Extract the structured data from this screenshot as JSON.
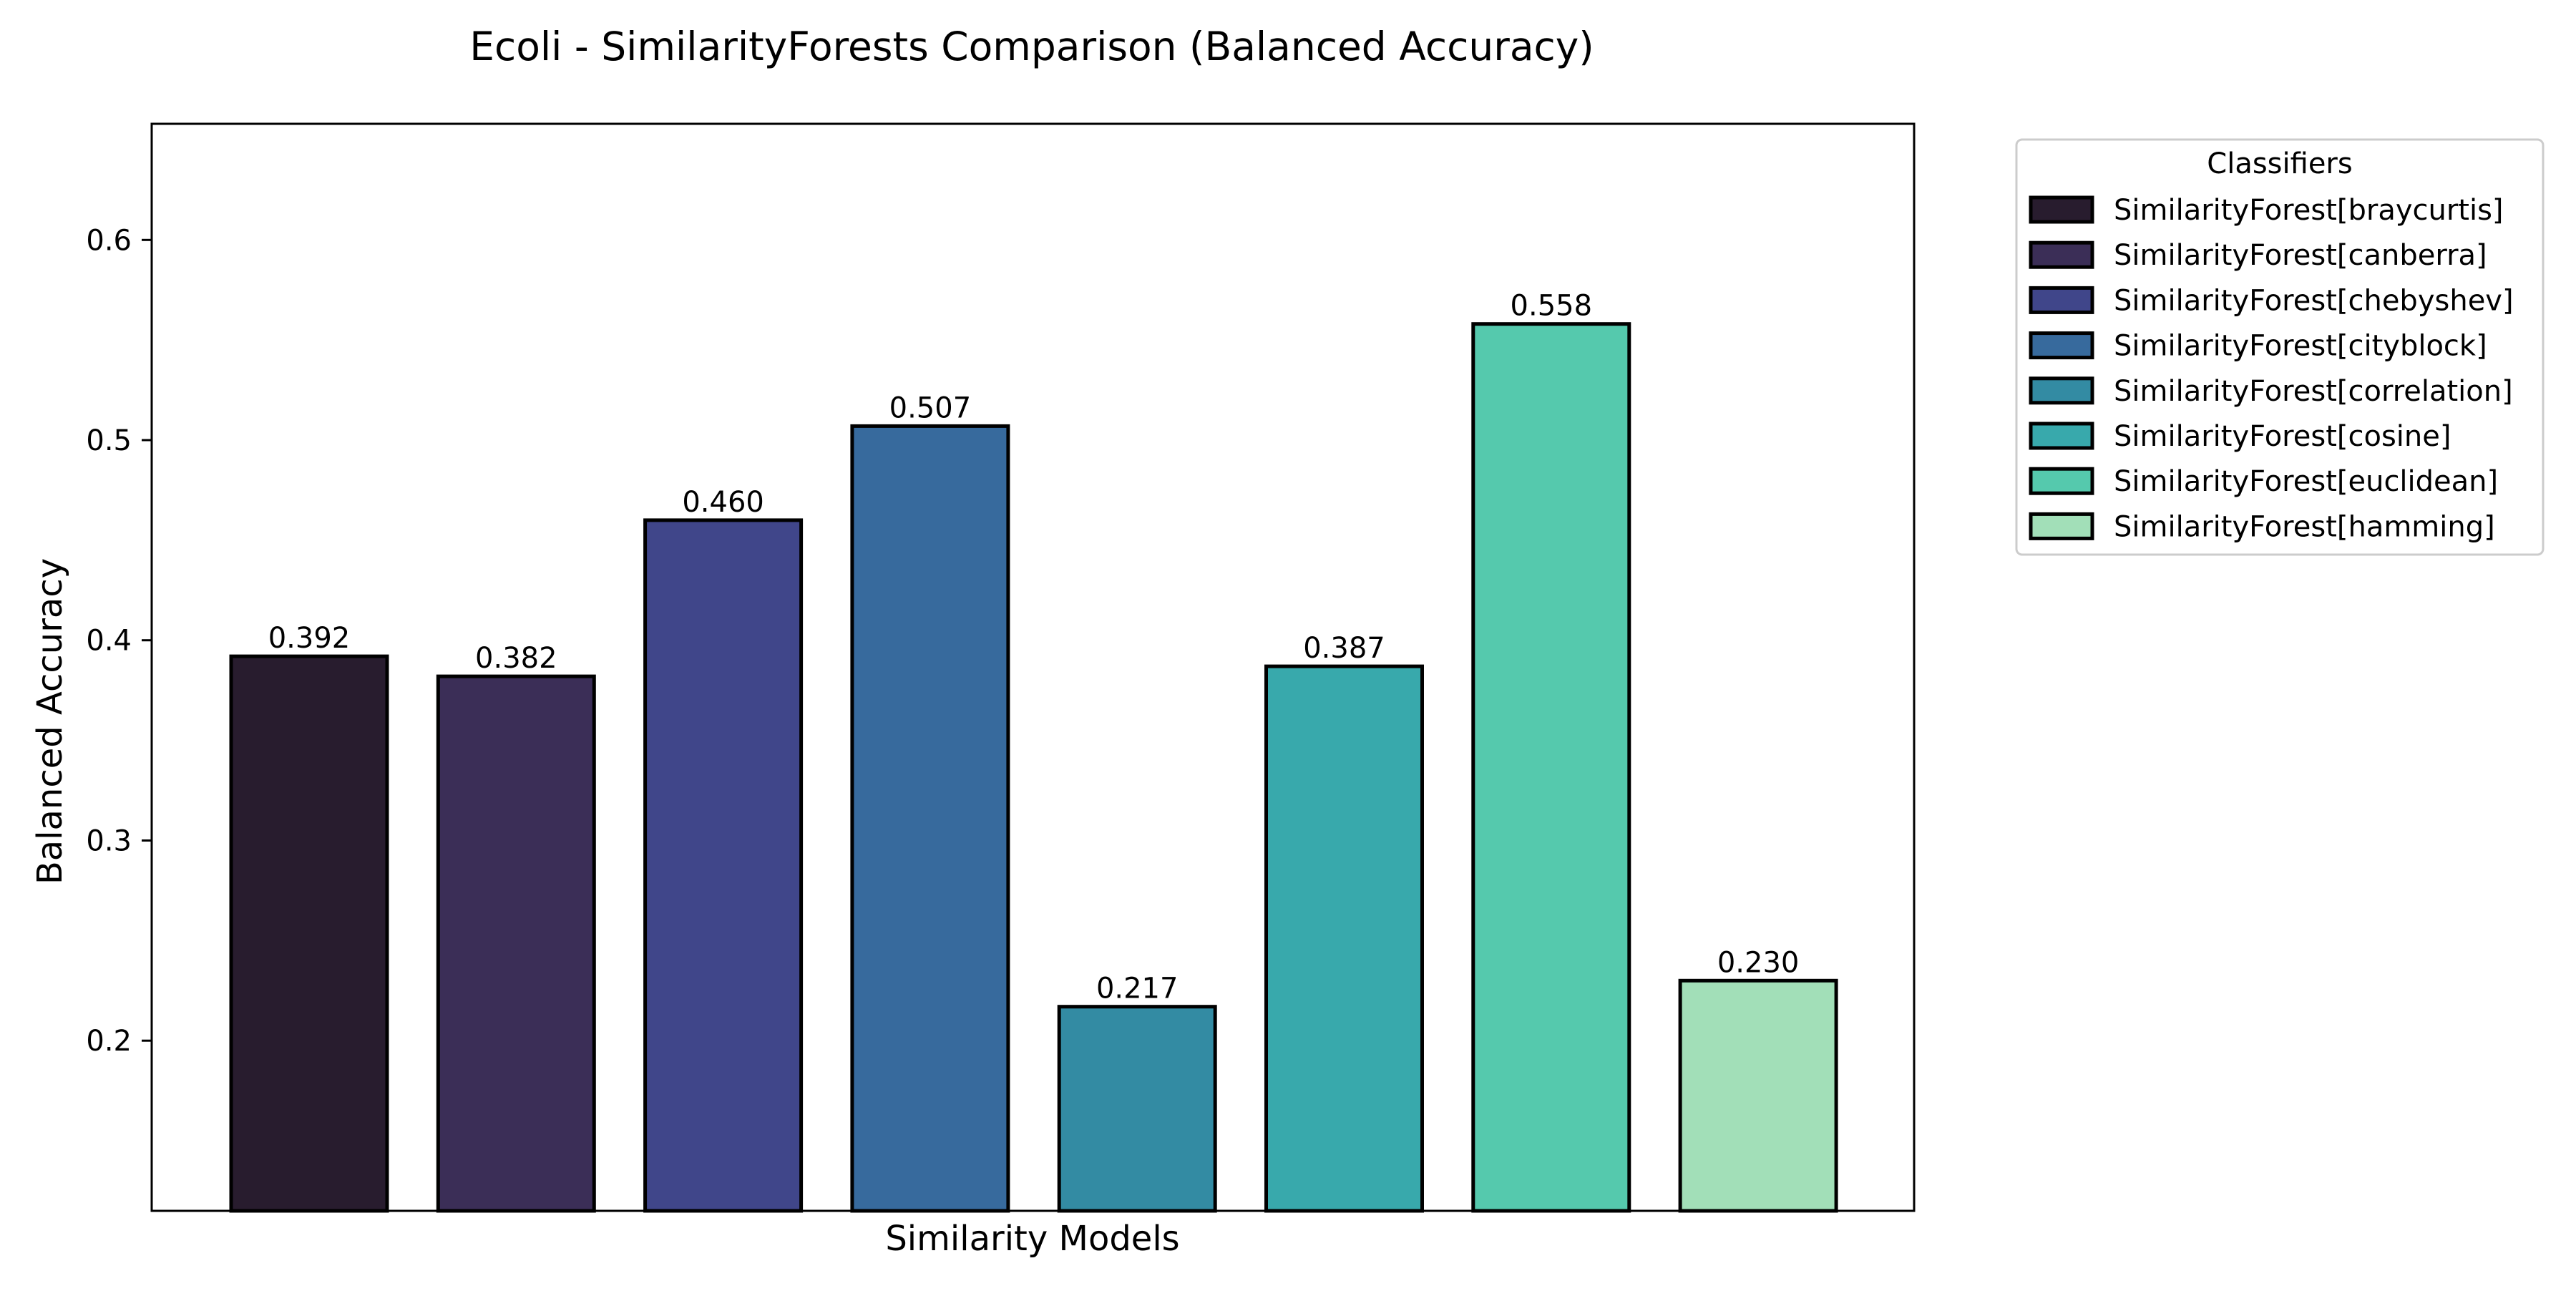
{
  "chart_data": {
    "type": "bar",
    "title": "Ecoli - SimilarityForests Comparison (Balanced Accuracy)",
    "xlabel": "Similarity Models",
    "ylabel": "Balanced Accuracy",
    "ylim": [
      0.115,
      0.658
    ],
    "yticks": [
      0.2,
      0.3,
      0.4,
      0.5,
      0.6
    ],
    "ytick_labels": [
      "0.2",
      "0.3",
      "0.4",
      "0.5",
      "0.6"
    ],
    "grid": false,
    "legend": {
      "title": "Classifiers",
      "placement": "outside-top-right"
    },
    "categories": [
      "SimilarityForest[braycurtis]",
      "SimilarityForest[canberra]",
      "SimilarityForest[chebyshev]",
      "SimilarityForest[cityblock]",
      "SimilarityForest[correlation]",
      "SimilarityForest[cosine]",
      "SimilarityForest[euclidean]",
      "SimilarityForest[hamming]"
    ],
    "values": [
      0.392,
      0.382,
      0.46,
      0.507,
      0.217,
      0.387,
      0.558,
      0.23
    ],
    "value_labels": [
      "0.392",
      "0.382",
      "0.460",
      "0.507",
      "0.217",
      "0.387",
      "0.558",
      "0.230"
    ],
    "colors": [
      "#281c2e",
      "#3b2e57",
      "#40468a",
      "#376a9d",
      "#338ba3",
      "#38a9ac",
      "#55c9ad",
      "#a2dfb8"
    ],
    "edge_color": "#000000"
  }
}
